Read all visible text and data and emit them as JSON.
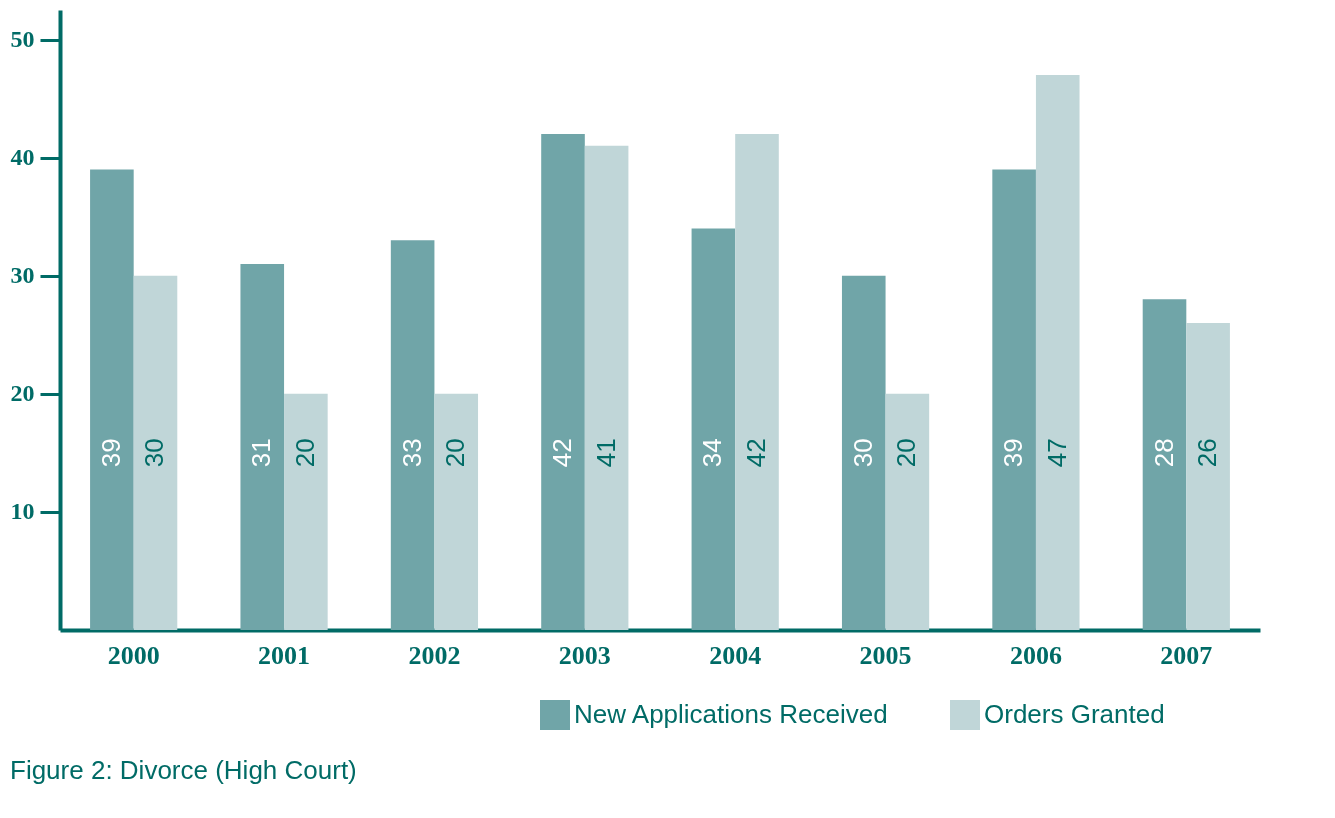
{
  "chart_data": {
    "type": "bar",
    "title": "Figure 2: Divorce (High Court)",
    "categories": [
      "2000",
      "2001",
      "2002",
      "2003",
      "2004",
      "2005",
      "2006",
      "2007"
    ],
    "series": [
      {
        "name": "New Applications Received",
        "color": "#70a5a8",
        "values": [
          39,
          31,
          33,
          42,
          34,
          30,
          39,
          28
        ]
      },
      {
        "name": "Orders Granted",
        "color": "#c0d6d8",
        "values": [
          30,
          20,
          20,
          41,
          42,
          20,
          47,
          26
        ]
      }
    ],
    "ylim": [
      0,
      52.5
    ],
    "yticks": [
      10,
      20,
      30,
      40,
      50
    ],
    "grid": false,
    "legend": "bottom right",
    "data_labels": true
  }
}
